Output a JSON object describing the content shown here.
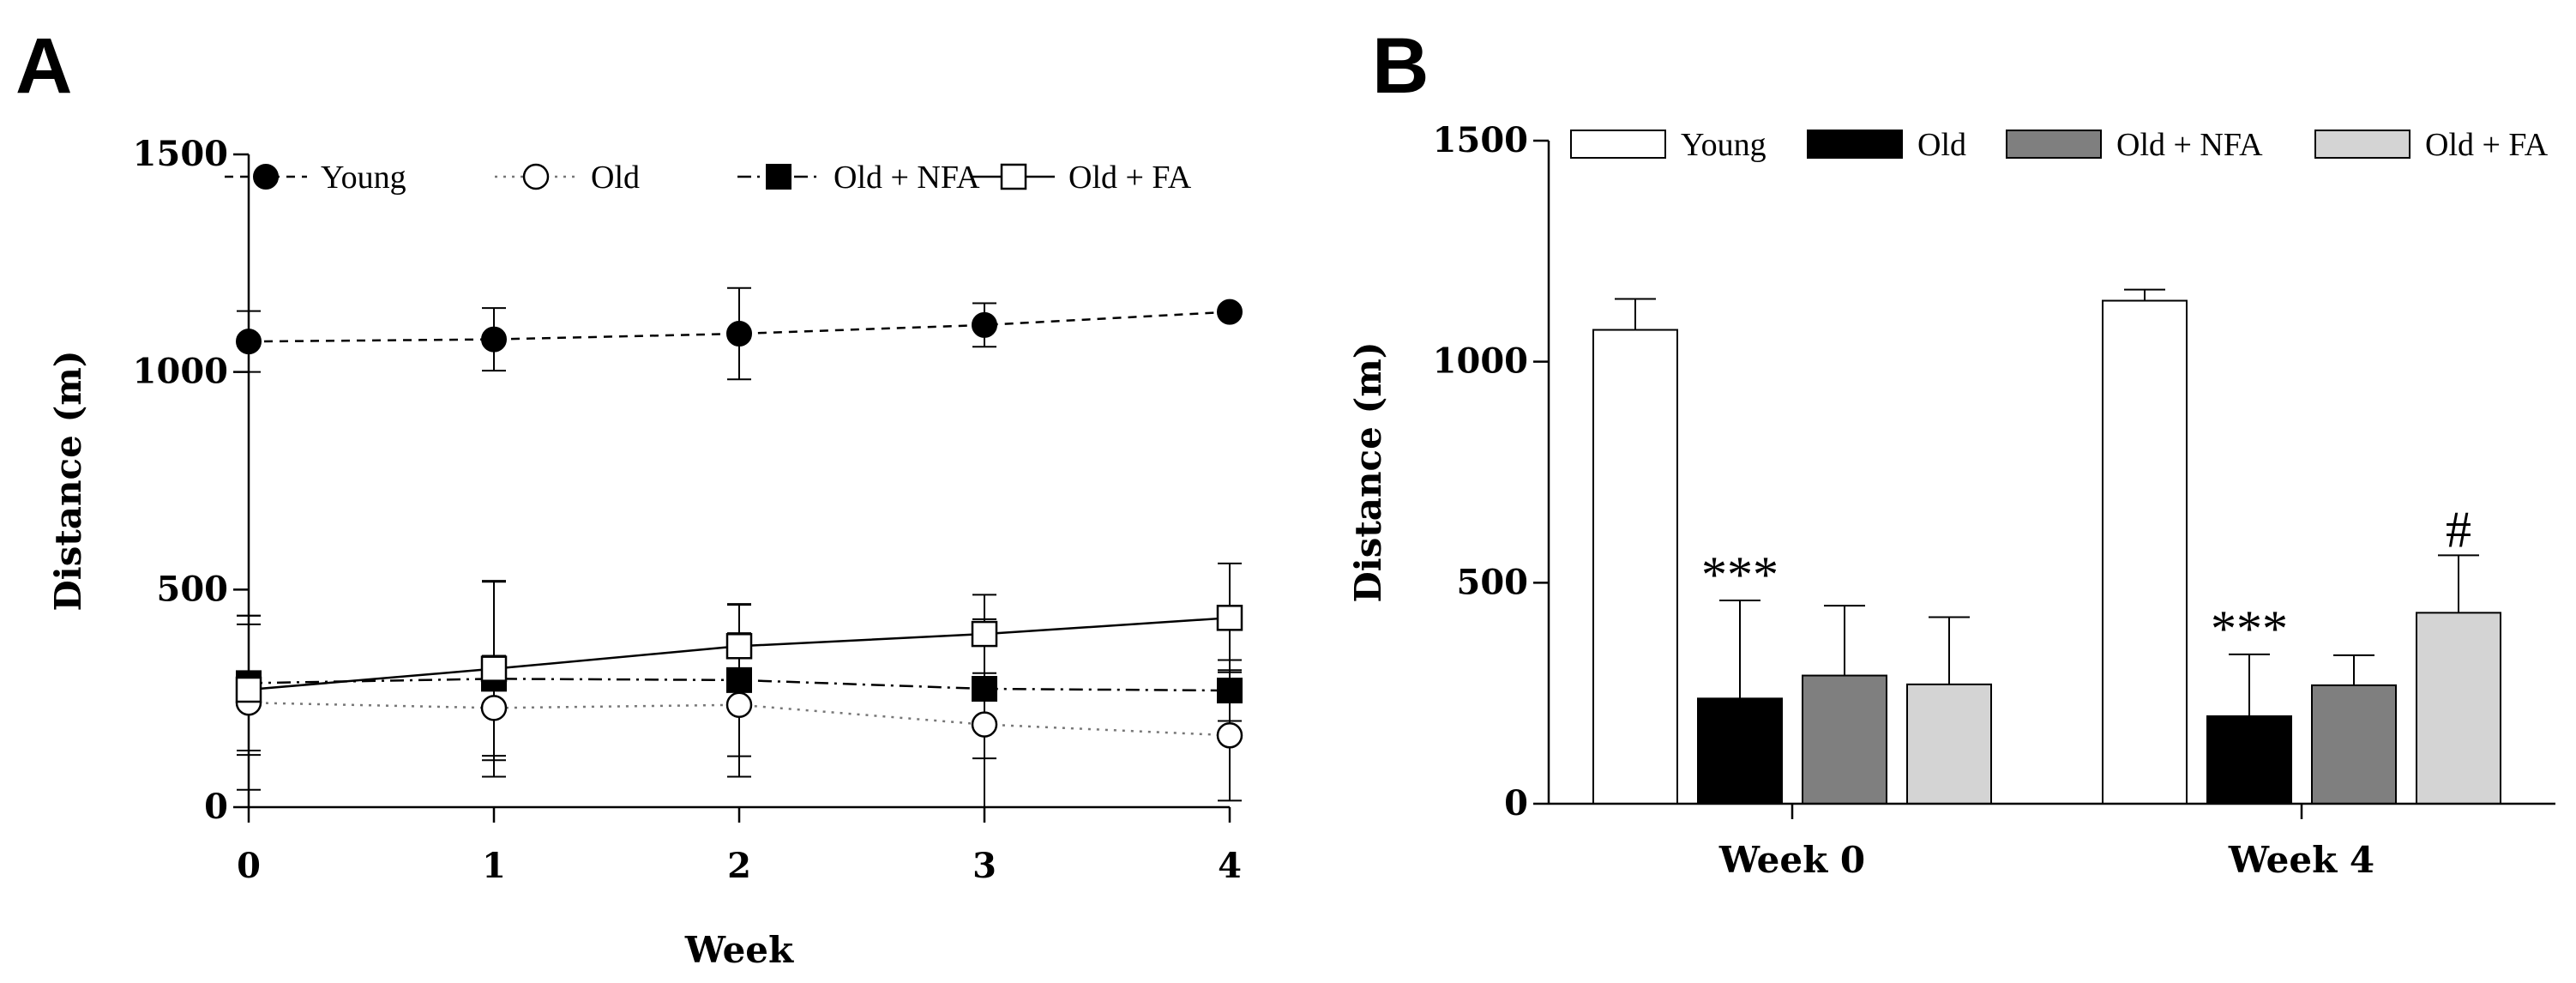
{
  "panels": {
    "a_label": "A",
    "b_label": "B"
  },
  "chart_data": [
    {
      "type": "line",
      "panel": "A",
      "title": "",
      "xlabel": "Week",
      "ylabel": "Distance (m)",
      "x": [
        0,
        1,
        2,
        3,
        4
      ],
      "xticks": [
        "0",
        "1",
        "2",
        "3",
        "4"
      ],
      "ylim": [
        0,
        1500
      ],
      "yticks": [
        "0",
        "500",
        "1000",
        "1500"
      ],
      "legend_position": "top",
      "series": [
        {
          "name": "Young",
          "marker": "filled-circle",
          "line": "dashed",
          "values": [
            1070,
            1075,
            1088,
            1108,
            1138
          ],
          "errors": [
            70,
            72,
            105,
            50,
            0
          ]
        },
        {
          "name": "Old",
          "marker": "open-circle",
          "line": "dotted",
          "values": [
            240,
            228,
            235,
            190,
            165
          ],
          "errors": [
            200,
            120,
            165,
            190,
            150
          ]
        },
        {
          "name": "Old + NFA",
          "marker": "filled-square",
          "line": "dash-dot",
          "values": [
            285,
            295,
            292,
            272,
            268
          ],
          "errors": [
            155,
            225,
            175,
            160,
            70
          ]
        },
        {
          "name": "Old + FA",
          "marker": "open-square",
          "line": "solid",
          "values": [
            270,
            318,
            370,
            398,
            435
          ],
          "errors": [
            150,
            200,
            95,
            90,
            125
          ]
        }
      ]
    },
    {
      "type": "bar",
      "panel": "B",
      "title": "",
      "xlabel": "",
      "ylabel": "Distance (m)",
      "categories": [
        "Week 0",
        "Week 4"
      ],
      "ylim": [
        0,
        1500
      ],
      "yticks": [
        "0",
        "500",
        "1000",
        "1500"
      ],
      "legend_position": "top",
      "series": [
        {
          "name": "Young",
          "color": "#ffffff",
          "values": [
            1072,
            1138
          ],
          "errors": [
            70,
            25
          ]
        },
        {
          "name": "Old",
          "color": "#000000",
          "values": [
            238,
            198
          ],
          "errors": [
            222,
            140
          ]
        },
        {
          "name": "Old + NFA",
          "color": "#7f7f7f",
          "values": [
            290,
            268
          ],
          "errors": [
            158,
            68
          ]
        },
        {
          "name": "Old + FA",
          "color": "#d4d4d4",
          "values": [
            270,
            432
          ],
          "errors": [
            152,
            130
          ]
        }
      ],
      "annotations": [
        {
          "text": "***",
          "category": "Week 0",
          "series": "Old"
        },
        {
          "text": "***",
          "category": "Week 4",
          "series": "Old"
        },
        {
          "text": "#",
          "category": "Week 4",
          "series": "Old + FA"
        }
      ]
    }
  ]
}
